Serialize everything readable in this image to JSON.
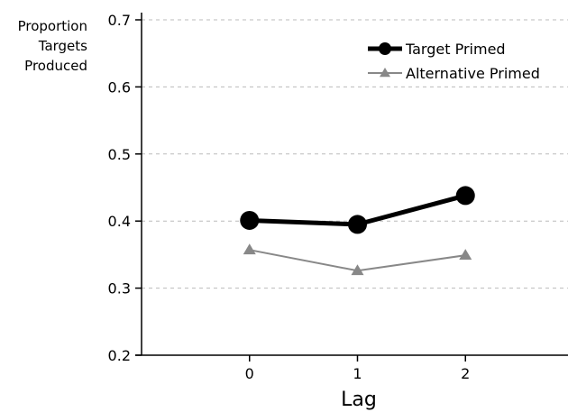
{
  "chart_data": {
    "type": "line",
    "xlabel": "Lag",
    "ylabel": [
      "Proportion",
      "Targets",
      "Produced"
    ],
    "categories": [
      "0",
      "1",
      "2"
    ],
    "x": [
      0,
      1,
      2
    ],
    "xlim": [
      -1,
      2.95
    ],
    "ylim": [
      0.2,
      0.7
    ],
    "yticks": [
      "0.2",
      "0.3",
      "0.4",
      "0.5",
      "0.6",
      "0.7"
    ],
    "grid": "horizontal dashed",
    "legend_position": "top-right",
    "series": [
      {
        "name": "Target Primed",
        "values": [
          0.401,
          0.395,
          0.438
        ],
        "color": "#000000",
        "marker": "circle"
      },
      {
        "name": "Alternative Primed",
        "values": [
          0.357,
          0.326,
          0.349
        ],
        "color": "#888888",
        "marker": "triangle"
      }
    ]
  }
}
